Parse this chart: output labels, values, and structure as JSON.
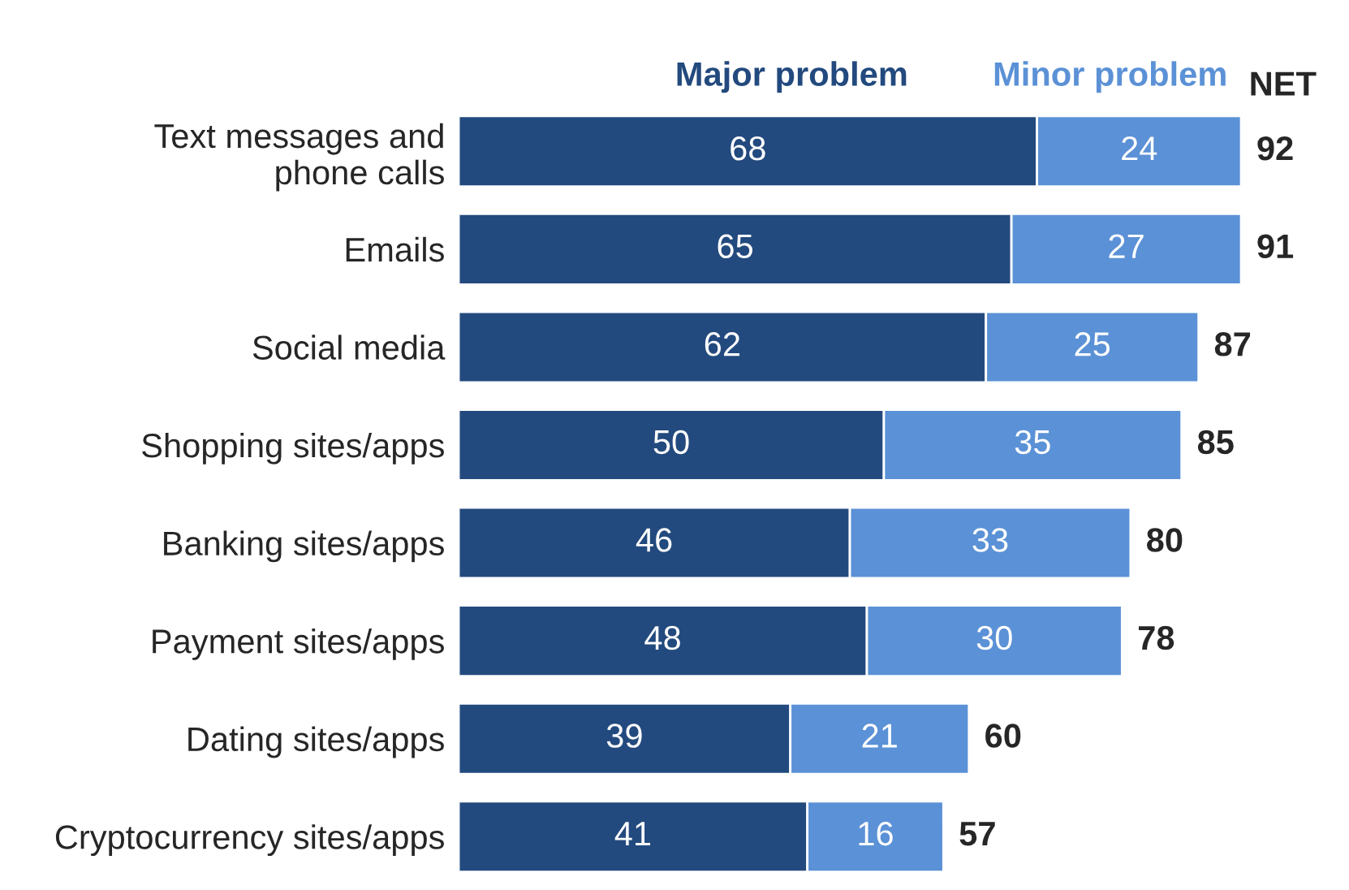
{
  "chart_data": {
    "type": "bar",
    "orientation": "horizontal",
    "stacked": true,
    "categories": [
      "Text messages and\nphone calls",
      "Emails",
      "Social media",
      "Shopping sites/apps",
      "Banking sites/apps",
      "Payment sites/apps",
      "Dating sites/apps",
      "Cryptocurrency sites/apps"
    ],
    "series": [
      {
        "name": "Major problem",
        "color": "#234a7e",
        "values": [
          68,
          65,
          62,
          50,
          46,
          48,
          39,
          41
        ]
      },
      {
        "name": "Minor problem",
        "color": "#5b91d6",
        "values": [
          24,
          27,
          25,
          35,
          33,
          30,
          21,
          16
        ]
      }
    ],
    "totals": [
      "92",
      "91",
      "87",
      "85",
      "80",
      "78",
      "60",
      "57"
    ],
    "annotations": [
      "NET"
    ],
    "data_labels": true,
    "tick_labels": "y",
    "legend": "top",
    "grid": false
  }
}
